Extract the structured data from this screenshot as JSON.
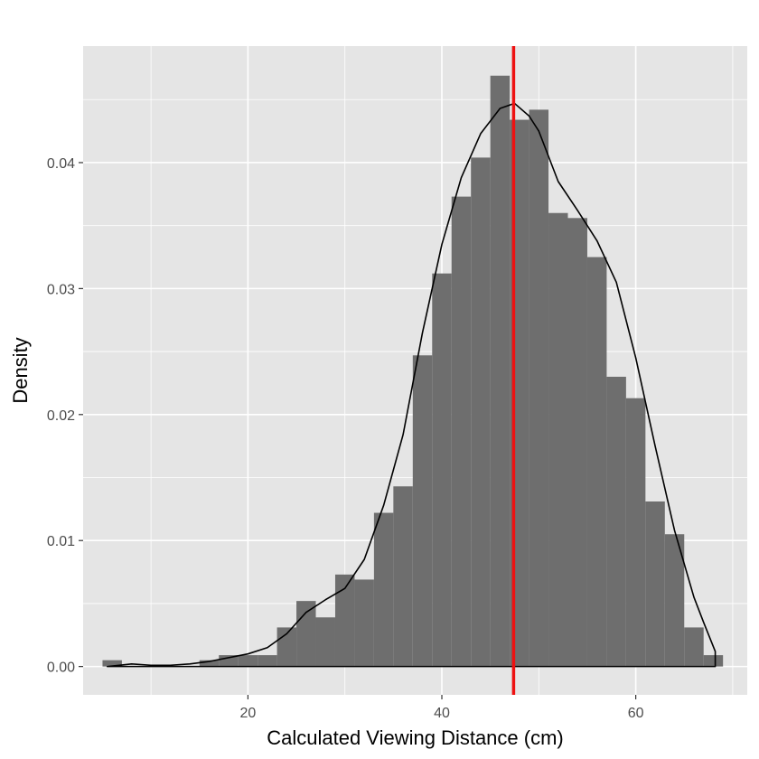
{
  "chart_data": {
    "type": "bar",
    "subtype": "histogram-with-density",
    "xlabel": "Calculated Viewing Distance (cm)",
    "ylabel": "Density",
    "xlim": [
      3,
      71.5
    ],
    "ylim": [
      -0.00225,
      0.04925
    ],
    "x_ticks": [
      20,
      40,
      60
    ],
    "x_tick_labels": [
      "20",
      "40",
      "60"
    ],
    "x_minor_ticks": [
      10,
      30,
      50,
      70
    ],
    "y_ticks": [
      0.0,
      0.01,
      0.02,
      0.03,
      0.04
    ],
    "y_tick_labels": [
      "0.00",
      "0.01",
      "0.02",
      "0.03",
      "0.04"
    ],
    "y_minor_ticks": [
      0.005,
      0.015,
      0.025,
      0.035,
      0.045
    ],
    "grid": true,
    "bin_width": 2,
    "bins": [
      {
        "x0": 5,
        "x1": 7,
        "density": 0.0005
      },
      {
        "x0": 7,
        "x1": 9,
        "density": 0.0
      },
      {
        "x0": 9,
        "x1": 11,
        "density": 0.0
      },
      {
        "x0": 11,
        "x1": 13,
        "density": 0.0
      },
      {
        "x0": 13,
        "x1": 15,
        "density": 0.0
      },
      {
        "x0": 15,
        "x1": 17,
        "density": 0.0005
      },
      {
        "x0": 17,
        "x1": 19,
        "density": 0.0009
      },
      {
        "x0": 19,
        "x1": 21,
        "density": 0.0009
      },
      {
        "x0": 21,
        "x1": 23,
        "density": 0.0009
      },
      {
        "x0": 23,
        "x1": 25,
        "density": 0.0031
      },
      {
        "x0": 25,
        "x1": 27,
        "density": 0.0052
      },
      {
        "x0": 27,
        "x1": 29,
        "density": 0.0039
      },
      {
        "x0": 29,
        "x1": 31,
        "density": 0.0073
      },
      {
        "x0": 31,
        "x1": 33,
        "density": 0.0069
      },
      {
        "x0": 33,
        "x1": 35,
        "density": 0.0122
      },
      {
        "x0": 35,
        "x1": 37,
        "density": 0.0143
      },
      {
        "x0": 37,
        "x1": 39,
        "density": 0.0247
      },
      {
        "x0": 39,
        "x1": 41,
        "density": 0.0312
      },
      {
        "x0": 41,
        "x1": 43,
        "density": 0.0373
      },
      {
        "x0": 43,
        "x1": 45,
        "density": 0.0404
      },
      {
        "x0": 45,
        "x1": 47,
        "density": 0.0469
      },
      {
        "x0": 47,
        "x1": 49,
        "density": 0.0434
      },
      {
        "x0": 49,
        "x1": 51,
        "density": 0.0442
      },
      {
        "x0": 51,
        "x1": 53,
        "density": 0.036
      },
      {
        "x0": 53,
        "x1": 55,
        "density": 0.0356
      },
      {
        "x0": 55,
        "x1": 57,
        "density": 0.0325
      },
      {
        "x0": 57,
        "x1": 59,
        "density": 0.023
      },
      {
        "x0": 59,
        "x1": 61,
        "density": 0.0213
      },
      {
        "x0": 61,
        "x1": 63,
        "density": 0.0131
      },
      {
        "x0": 63,
        "x1": 65,
        "density": 0.0105
      },
      {
        "x0": 65,
        "x1": 67,
        "density": 0.0031
      },
      {
        "x0": 67,
        "x1": 69,
        "density": 0.0009
      }
    ],
    "density_curve": {
      "x": [
        5.5,
        8,
        10,
        12,
        14,
        16,
        18,
        20,
        22,
        24,
        26,
        28,
        30,
        32,
        34,
        36,
        38,
        40,
        42,
        44,
        46,
        47.5,
        49,
        50,
        52,
        54,
        56,
        58,
        60,
        62,
        64,
        66,
        67,
        68.2
      ],
      "y": [
        0.0,
        0.0002,
        0.0001,
        0.0001,
        0.0002,
        0.0004,
        0.0007,
        0.001,
        0.0015,
        0.0026,
        0.0043,
        0.0053,
        0.0062,
        0.0085,
        0.0128,
        0.0184,
        0.0265,
        0.0335,
        0.0388,
        0.0423,
        0.0443,
        0.0447,
        0.0437,
        0.0425,
        0.0385,
        0.0362,
        0.0338,
        0.0305,
        0.0245,
        0.0175,
        0.0108,
        0.0055,
        0.0035,
        0.0012
      ]
    },
    "vline": {
      "x": 47.4,
      "color": "#ee1111"
    },
    "colors": {
      "panel_background": "#e5e5e5",
      "grid": "#ffffff",
      "bar_fill": "#6e6e6e",
      "density_line": "#000000"
    }
  }
}
